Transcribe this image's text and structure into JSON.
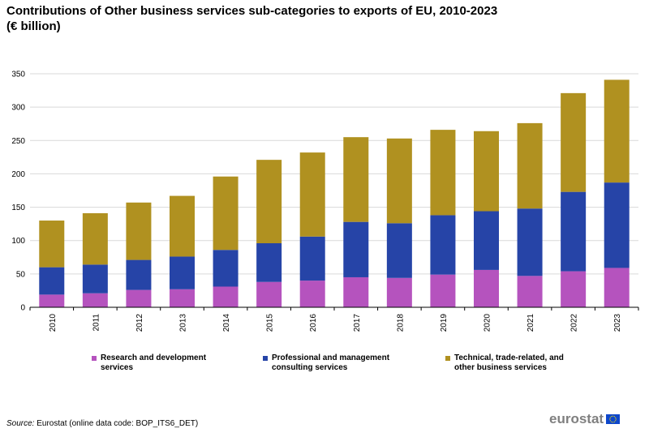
{
  "chart_data": {
    "type": "stacked-bar",
    "title": "Contributions of Other business services sub-categories to exports of EU, 2010-2023",
    "subtitle": "(€ billion)",
    "categories": [
      "2010",
      "2011",
      "2012",
      "2013",
      "2014",
      "2015",
      "2016",
      "2017",
      "2018",
      "2019",
      "2020",
      "2021",
      "2022",
      "2023"
    ],
    "ylim": [
      0,
      350
    ],
    "yticks": [
      0,
      50,
      100,
      150,
      200,
      250,
      300,
      350
    ],
    "grid": true,
    "legend_position": "bottom",
    "series": [
      {
        "name": "Research and development services",
        "color": "#b553be",
        "values": [
          19,
          21,
          26,
          27,
          31,
          38,
          40,
          45,
          44,
          49,
          56,
          47,
          54,
          59
        ]
      },
      {
        "name": "Professional and management consulting services",
        "color": "#2644a7",
        "values": [
          41,
          43,
          45,
          49,
          55,
          58,
          66,
          83,
          82,
          89,
          88,
          101,
          119,
          128
        ]
      },
      {
        "name": "Technical, trade-related, and other business services",
        "color": "#b09120",
        "values": [
          70,
          77,
          86,
          91,
          110,
          125,
          126,
          127,
          127,
          128,
          120,
          128,
          148,
          154
        ]
      }
    ]
  },
  "legend": [
    {
      "line1": "Research and development",
      "line2": "services",
      "color": "#b553be"
    },
    {
      "line1": "Professional and management",
      "line2": "consulting services",
      "color": "#2644a7"
    },
    {
      "line1": "Technical, trade-related, and",
      "line2": "other business services",
      "color": "#b09120"
    }
  ],
  "source": {
    "label": "Source:",
    "text": "Eurostat (online data code: BOP_ITS6_DET)"
  },
  "logo": {
    "text": "eurostat"
  }
}
